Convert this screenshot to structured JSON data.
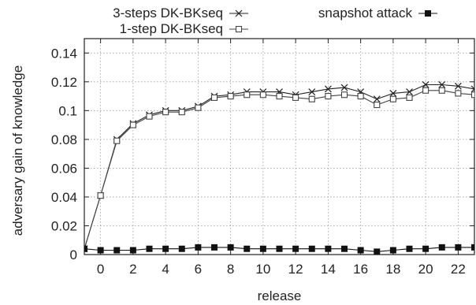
{
  "chart_data": {
    "type": "line",
    "title": "",
    "xlabel": "release",
    "ylabel": "adversary gain of knowledge",
    "xlim": [
      -1,
      23
    ],
    "ylim": [
      0,
      0.15
    ],
    "xticks": [
      0,
      2,
      4,
      6,
      8,
      10,
      12,
      14,
      16,
      18,
      20,
      22
    ],
    "yticks": [
      0,
      0.02,
      0.04,
      0.06,
      0.08,
      0.1,
      0.12,
      0.14
    ],
    "ytick_labels": [
      "0",
      "0.02",
      "0.04",
      "0.06",
      "0.08",
      "0.1",
      "0.12",
      "0.14"
    ],
    "grid": true,
    "legend_position": "top",
    "x": [
      -1,
      0,
      1,
      2,
      3,
      4,
      5,
      6,
      7,
      8,
      9,
      10,
      11,
      12,
      13,
      14,
      15,
      16,
      17,
      18,
      19,
      20,
      21,
      22,
      23
    ],
    "series": [
      {
        "name": "3-steps DK-BKseq",
        "marker": "x",
        "color": "#222222",
        "values": [
          0.004,
          0.041,
          0.08,
          0.091,
          0.097,
          0.1,
          0.1,
          0.103,
          0.11,
          0.111,
          0.113,
          0.113,
          0.113,
          0.111,
          0.113,
          0.115,
          0.116,
          0.113,
          0.108,
          0.112,
          0.113,
          0.118,
          0.118,
          0.117,
          0.115
        ]
      },
      {
        "name": "1-step DK-BKseq",
        "marker": "square-open",
        "color": "#444444",
        "values": [
          0.004,
          0.041,
          0.079,
          0.09,
          0.096,
          0.099,
          0.099,
          0.102,
          0.109,
          0.11,
          0.111,
          0.111,
          0.11,
          0.109,
          0.108,
          0.11,
          0.111,
          0.11,
          0.104,
          0.108,
          0.109,
          0.114,
          0.114,
          0.112,
          0.111
        ]
      },
      {
        "name": "snapshot attack",
        "marker": "square-filled",
        "color": "#111111",
        "values": [
          0.004,
          0.003,
          0.003,
          0.003,
          0.004,
          0.004,
          0.004,
          0.005,
          0.005,
          0.005,
          0.004,
          0.004,
          0.004,
          0.004,
          0.004,
          0.004,
          0.004,
          0.003,
          0.002,
          0.003,
          0.004,
          0.004,
          0.005,
          0.005,
          0.005
        ]
      }
    ]
  }
}
